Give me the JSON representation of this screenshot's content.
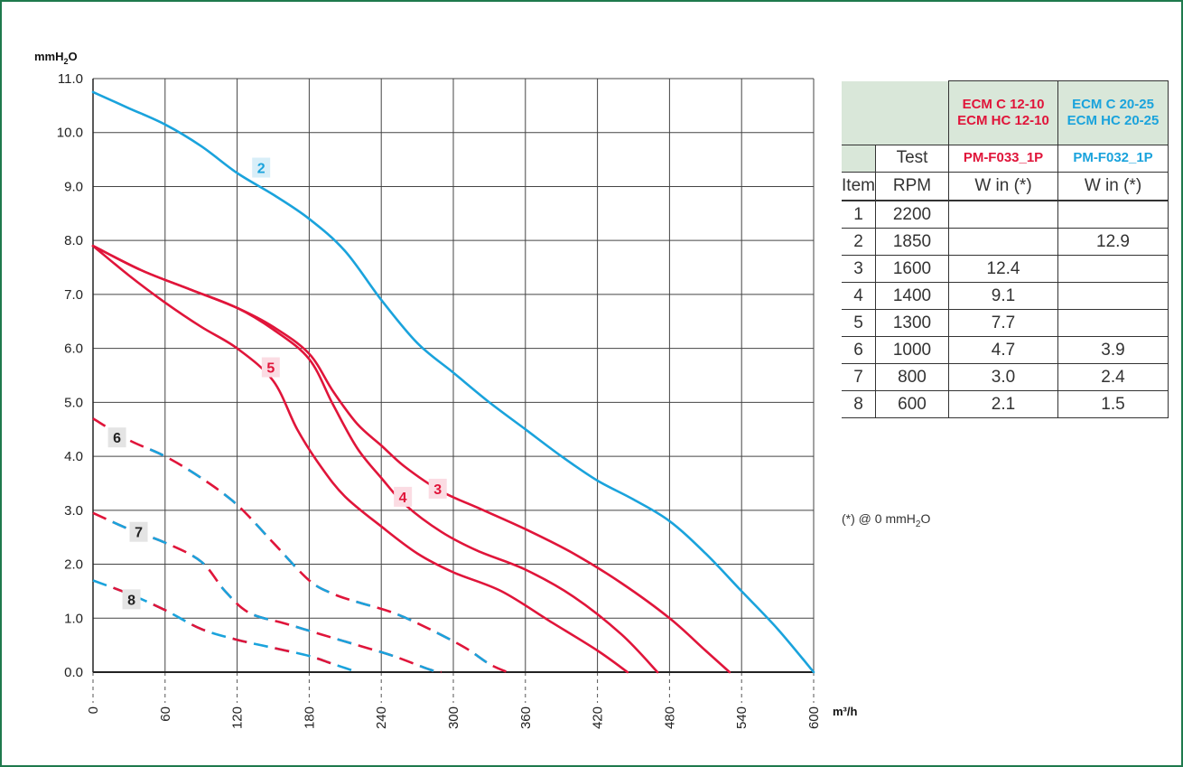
{
  "chart_data": {
    "type": "line",
    "ylabel": "mmH2O",
    "xlabel": "m³/h",
    "xlim": [
      0,
      600
    ],
    "ylim": [
      0,
      11
    ],
    "x_ticks": [
      "0",
      "60",
      "120",
      "180",
      "240",
      "300",
      "360",
      "420",
      "480",
      "540",
      "600"
    ],
    "y_ticks": [
      "0.0",
      "1.0",
      "2.0",
      "3.0",
      "4.0",
      "5.0",
      "6.0",
      "7.0",
      "8.0",
      "9.0",
      "10.0",
      "11.0"
    ],
    "grid": true,
    "series": [
      {
        "name": "2",
        "color": "#1aa3dc",
        "dash": false,
        "points": [
          [
            0,
            10.75
          ],
          [
            30,
            10.45
          ],
          [
            60,
            10.15
          ],
          [
            90,
            9.75
          ],
          [
            120,
            9.25
          ],
          [
            150,
            8.85
          ],
          [
            180,
            8.4
          ],
          [
            210,
            7.8
          ],
          [
            240,
            6.9
          ],
          [
            270,
            6.1
          ],
          [
            300,
            5.55
          ],
          [
            330,
            5.0
          ],
          [
            360,
            4.5
          ],
          [
            390,
            4.0
          ],
          [
            420,
            3.55
          ],
          [
            450,
            3.2
          ],
          [
            480,
            2.8
          ],
          [
            510,
            2.2
          ],
          [
            540,
            1.5
          ],
          [
            570,
            0.8
          ],
          [
            600,
            0.0
          ]
        ]
      },
      {
        "name": "3",
        "color": "#e0153a",
        "dash": false,
        "points": [
          [
            0,
            7.9
          ],
          [
            40,
            7.45
          ],
          [
            80,
            7.1
          ],
          [
            120,
            6.75
          ],
          [
            150,
            6.4
          ],
          [
            180,
            5.9
          ],
          [
            200,
            5.2
          ],
          [
            220,
            4.6
          ],
          [
            240,
            4.2
          ],
          [
            260,
            3.8
          ],
          [
            290,
            3.35
          ],
          [
            320,
            3.05
          ],
          [
            360,
            2.65
          ],
          [
            400,
            2.2
          ],
          [
            440,
            1.65
          ],
          [
            480,
            1.0
          ],
          [
            510,
            0.4
          ],
          [
            530,
            0.0
          ]
        ]
      },
      {
        "name": "4",
        "color": "#e0153a",
        "dash": false,
        "points": [
          [
            0,
            7.9
          ],
          [
            40,
            7.45
          ],
          [
            80,
            7.1
          ],
          [
            120,
            6.75
          ],
          [
            150,
            6.35
          ],
          [
            180,
            5.8
          ],
          [
            200,
            4.95
          ],
          [
            220,
            4.15
          ],
          [
            240,
            3.6
          ],
          [
            260,
            3.1
          ],
          [
            290,
            2.6
          ],
          [
            320,
            2.25
          ],
          [
            360,
            1.9
          ],
          [
            400,
            1.4
          ],
          [
            440,
            0.7
          ],
          [
            470,
            0.0
          ]
        ]
      },
      {
        "name": "5",
        "color": "#e0153a",
        "dash": false,
        "points": [
          [
            0,
            7.9
          ],
          [
            30,
            7.35
          ],
          [
            60,
            6.85
          ],
          [
            90,
            6.4
          ],
          [
            120,
            6.0
          ],
          [
            150,
            5.4
          ],
          [
            170,
            4.5
          ],
          [
            190,
            3.8
          ],
          [
            210,
            3.25
          ],
          [
            240,
            2.7
          ],
          [
            270,
            2.2
          ],
          [
            300,
            1.85
          ],
          [
            340,
            1.5
          ],
          [
            380,
            0.95
          ],
          [
            420,
            0.4
          ],
          [
            445,
            0.0
          ]
        ]
      },
      {
        "name": "6",
        "colors": [
          "#e0153a",
          "#1aa3dc"
        ],
        "dash": true,
        "points": [
          [
            0,
            4.7
          ],
          [
            30,
            4.3
          ],
          [
            60,
            4.0
          ],
          [
            90,
            3.6
          ],
          [
            120,
            3.1
          ],
          [
            150,
            2.4
          ],
          [
            180,
            1.7
          ],
          [
            200,
            1.45
          ],
          [
            220,
            1.3
          ],
          [
            250,
            1.1
          ],
          [
            280,
            0.8
          ],
          [
            310,
            0.45
          ],
          [
            330,
            0.15
          ],
          [
            345,
            0.0
          ]
        ]
      },
      {
        "name": "7",
        "colors": [
          "#e0153a",
          "#1aa3dc"
        ],
        "dash": true,
        "points": [
          [
            0,
            2.95
          ],
          [
            30,
            2.65
          ],
          [
            60,
            2.4
          ],
          [
            90,
            2.05
          ],
          [
            110,
            1.5
          ],
          [
            130,
            1.1
          ],
          [
            160,
            0.9
          ],
          [
            190,
            0.7
          ],
          [
            220,
            0.5
          ],
          [
            250,
            0.3
          ],
          [
            280,
            0.05
          ],
          [
            290,
            0.0
          ]
        ]
      },
      {
        "name": "8",
        "colors": [
          "#1aa3dc",
          "#e0153a"
        ],
        "dash": true,
        "points": [
          [
            0,
            1.7
          ],
          [
            30,
            1.45
          ],
          [
            60,
            1.15
          ],
          [
            90,
            0.8
          ],
          [
            120,
            0.6
          ],
          [
            150,
            0.45
          ],
          [
            180,
            0.3
          ],
          [
            200,
            0.15
          ],
          [
            220,
            0.0
          ]
        ]
      }
    ],
    "labels": [
      {
        "text": "2",
        "x": 140,
        "y": 9.35,
        "color": "#1aa3dc"
      },
      {
        "text": "3",
        "x": 287,
        "y": 3.4,
        "color": "#e0153a"
      },
      {
        "text": "4",
        "x": 258,
        "y": 3.25,
        "color": "#e0153a"
      },
      {
        "text": "5",
        "x": 148,
        "y": 5.65,
        "color": "#e0153a"
      },
      {
        "text": "6",
        "x": 20,
        "y": 4.35,
        "color": "#222222"
      },
      {
        "text": "7",
        "x": 38,
        "y": 2.6,
        "color": "#222222"
      },
      {
        "text": "8",
        "x": 32,
        "y": 1.35,
        "color": "#222222"
      }
    ]
  },
  "table": {
    "model_a_line1": "ECM C 12-10",
    "model_a_line2": "ECM HC 12-10",
    "model_b_line1": "ECM C 20-25",
    "model_b_line2": "ECM HC 20-25",
    "test_label": "Test",
    "code_a": "PM-F033_1P",
    "code_b": "PM-F032_1P",
    "col_item": "Item",
    "col_rpm": "RPM",
    "col_win_a": "W in (*)",
    "col_win_b": "W in (*)",
    "rows": [
      {
        "item": "1",
        "rpm": "2200",
        "a": "",
        "b": ""
      },
      {
        "item": "2",
        "rpm": "1850",
        "a": "",
        "b": "12.9"
      },
      {
        "item": "3",
        "rpm": "1600",
        "a": "12.4",
        "b": ""
      },
      {
        "item": "4",
        "rpm": "1400",
        "a": "9.1",
        "b": ""
      },
      {
        "item": "5",
        "rpm": "1300",
        "a": "7.7",
        "b": ""
      },
      {
        "item": "6",
        "rpm": "1000",
        "a": "4.7",
        "b": "3.9"
      },
      {
        "item": "7",
        "rpm": "800",
        "a": "3.0",
        "b": "2.4"
      },
      {
        "item": "8",
        "rpm": "600",
        "a": "2.1",
        "b": "1.5"
      }
    ]
  },
  "footnote": {
    "prefix": "(*) @ 0 mmH",
    "sub": "2",
    "suffix": "O"
  },
  "colors": {
    "red": "#e0153a",
    "blue": "#1aa3dc",
    "frame": "#1f7a4d",
    "header_bg": "#d9e7d9"
  }
}
